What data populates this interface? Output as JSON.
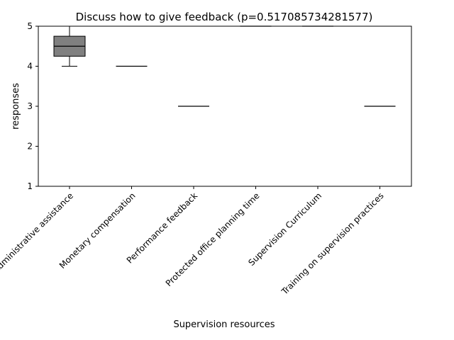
{
  "chart_data": {
    "type": "box",
    "title": "Discuss how to give feedback (p=0.517085734281577)",
    "xlabel": "Supervision resources",
    "ylabel": "responses",
    "ylim": [
      1,
      5
    ],
    "yticks": [
      1,
      2,
      3,
      4,
      5
    ],
    "grid": false,
    "box_color": "#808080",
    "categories": [
      "Administrative assistance",
      "Monetary compensation",
      "Performance feedback",
      "Protected office planning time",
      "Supervision Curriculum",
      "Training on supervision practices"
    ],
    "boxes": [
      {
        "min": 4,
        "q1": 4.25,
        "median": 4.5,
        "q3": 4.75,
        "max": 5
      },
      {
        "min": 4,
        "q1": 4,
        "median": 4,
        "q3": 4,
        "max": 4
      },
      {
        "min": 3,
        "q1": 3,
        "median": 3,
        "q3": 3,
        "max": 3
      },
      {
        "min": 5,
        "q1": 5,
        "median": 5,
        "q3": 5,
        "max": 5
      },
      {
        "min": 5,
        "q1": 5,
        "median": 5,
        "q3": 5,
        "max": 5
      },
      {
        "min": 3,
        "q1": 3,
        "median": 3,
        "q3": 3,
        "max": 3
      }
    ]
  }
}
